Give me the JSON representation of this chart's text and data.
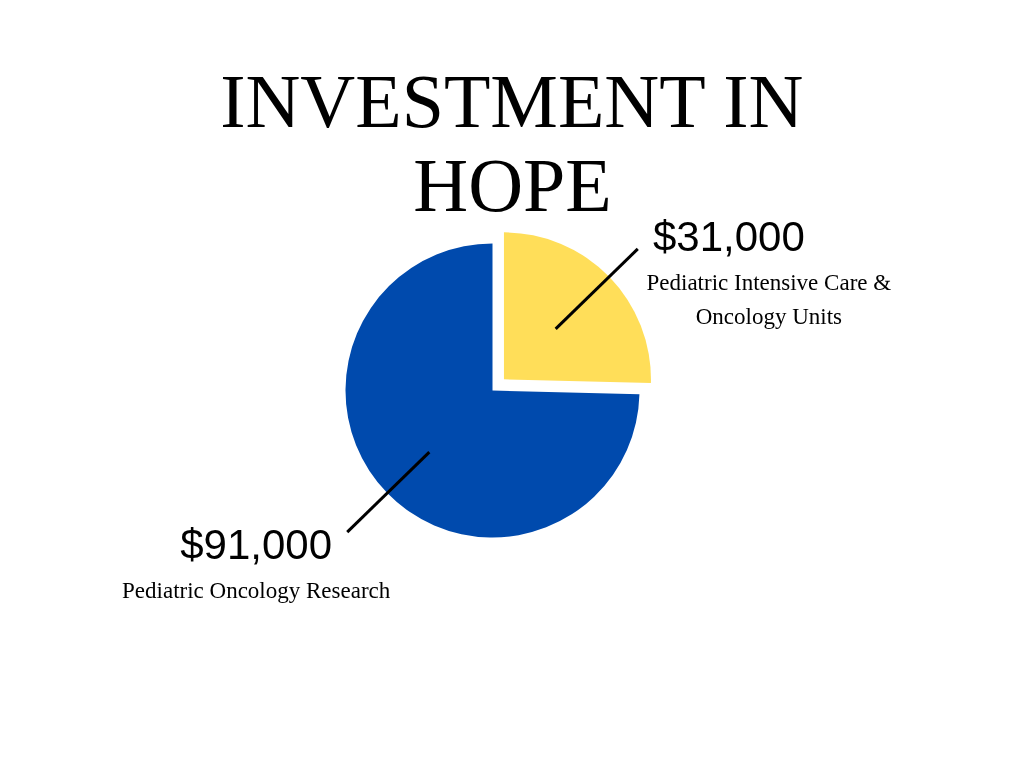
{
  "chart_data": {
    "type": "pie",
    "title": "INVESTMENT IN HOPE",
    "categories": [
      "Pediatric Intensive Care & Oncology Units",
      "Pediatric Oncology Research"
    ],
    "values": [
      31000,
      91000
    ],
    "colors": [
      "#ffde59",
      "#004aad"
    ],
    "value_labels": [
      "$31,000",
      "$91,000"
    ]
  }
}
